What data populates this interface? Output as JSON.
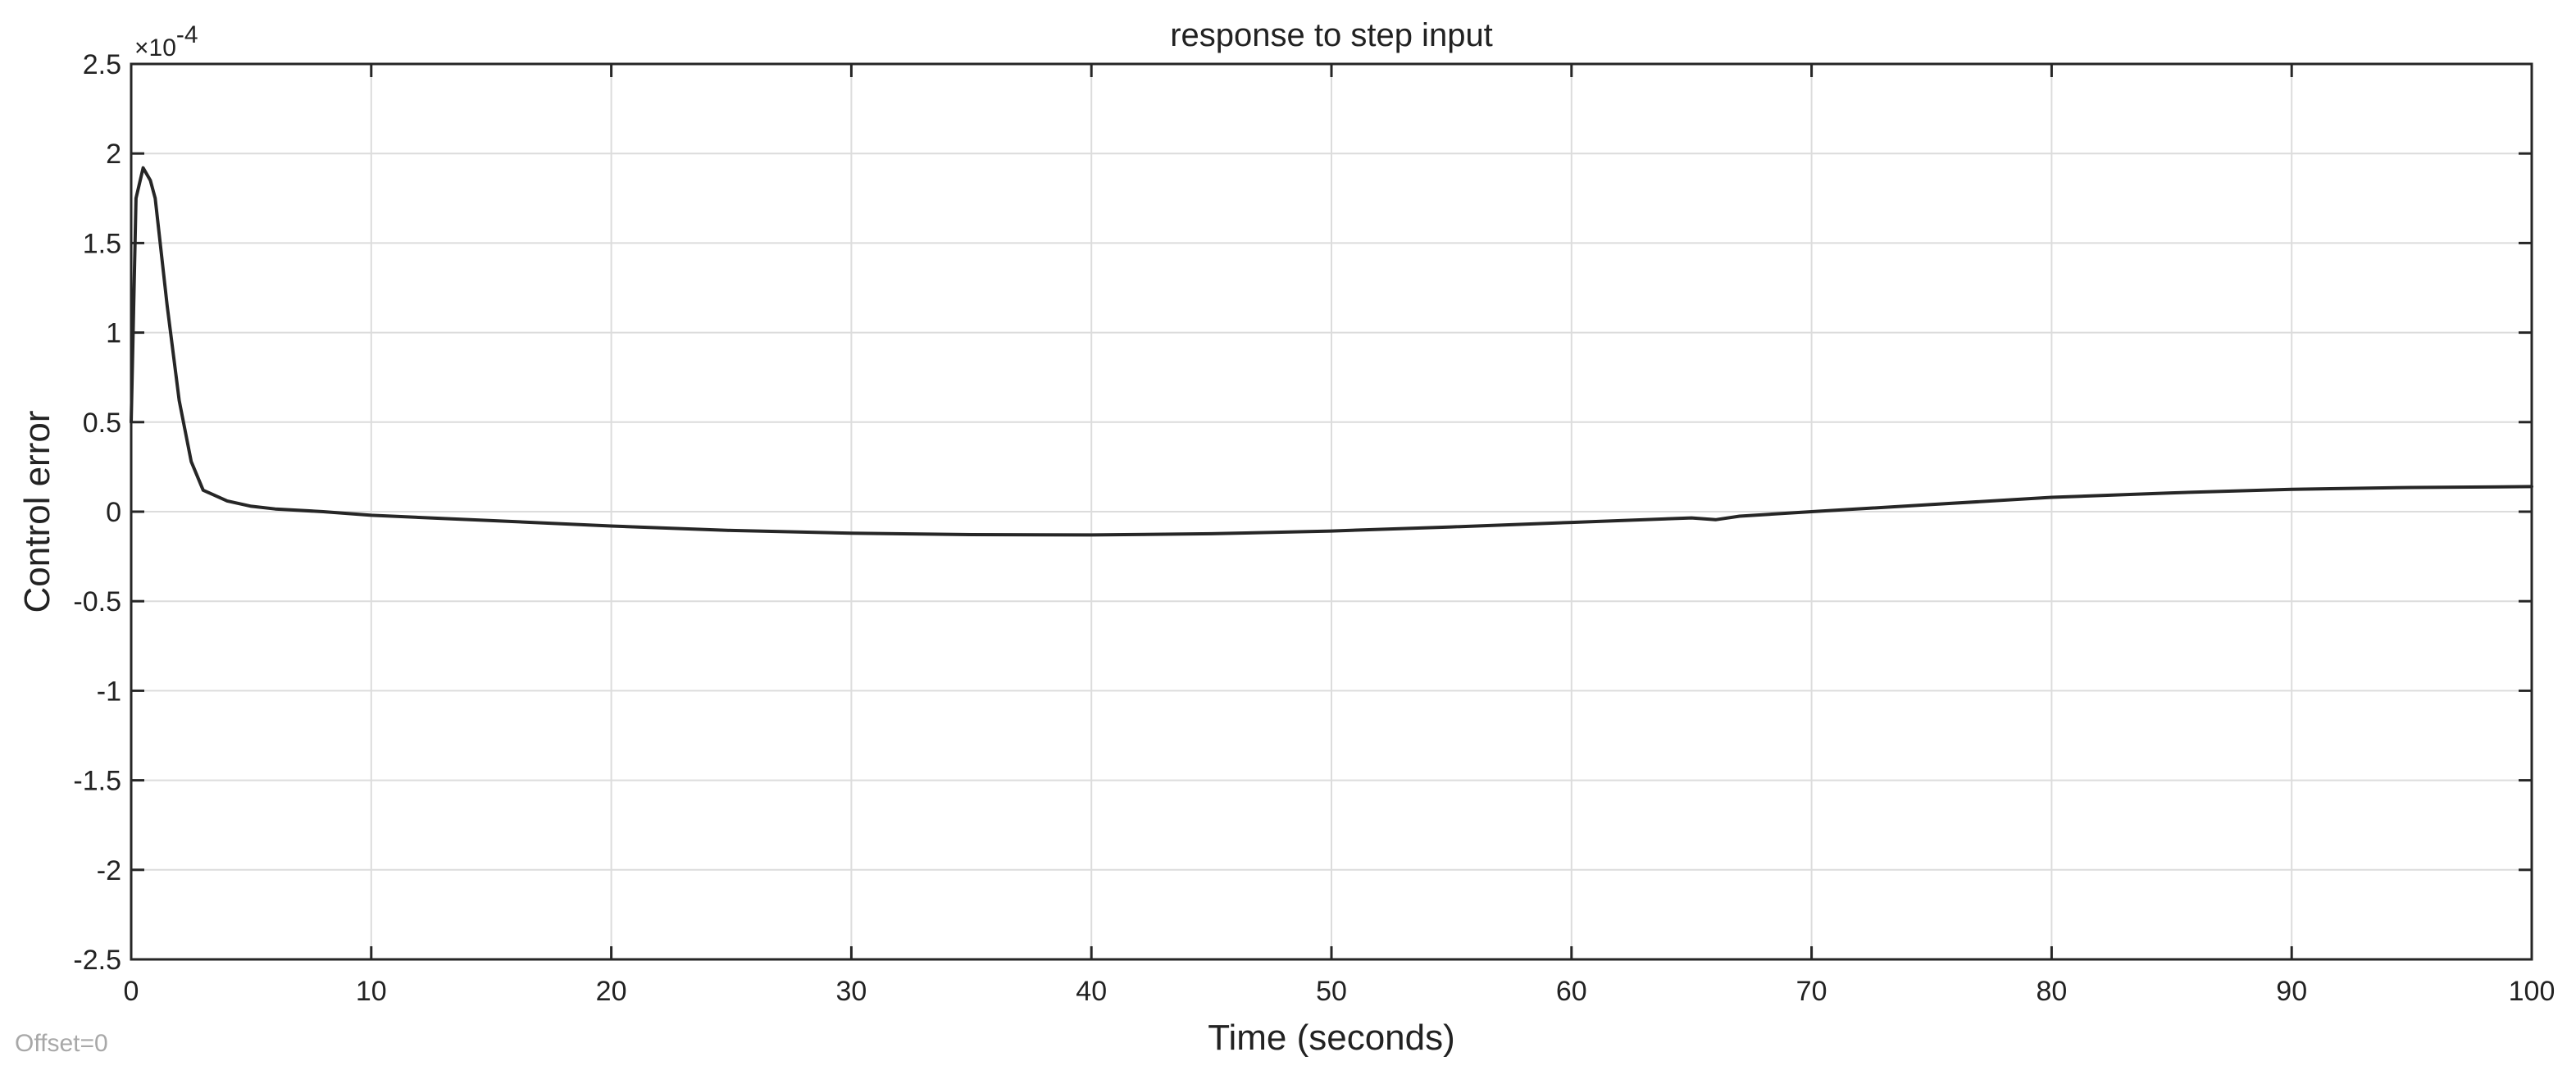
{
  "chart_data": {
    "type": "line",
    "title": "response to step input",
    "xlabel": "Time (seconds)",
    "ylabel": "Control error",
    "y_exponent_base": "×10",
    "y_exponent_power": "-4",
    "offset_label": "Offset=0",
    "xlim": [
      0,
      100
    ],
    "ylim": [
      -2.5,
      2.5
    ],
    "x_ticks": [
      0,
      10,
      20,
      30,
      40,
      50,
      60,
      70,
      80,
      90,
      100
    ],
    "x_tick_labels": [
      "0",
      "10",
      "20",
      "30",
      "40",
      "50",
      "60",
      "70",
      "80",
      "90",
      "100"
    ],
    "y_ticks": [
      -2.5,
      -2,
      -1.5,
      -1,
      -0.5,
      0,
      0.5,
      1,
      1.5,
      2,
      2.5
    ],
    "y_tick_labels": [
      "-2.5",
      "-2",
      "-1.5",
      "-1",
      "-0.5",
      "0",
      "0.5",
      "1",
      "1.5",
      "2",
      "2.5"
    ],
    "grid": true,
    "series_color": "#262626",
    "series": [
      {
        "x": [
          0,
          0.2,
          0.5,
          0.8,
          1.0,
          1.5,
          2.0,
          2.5,
          3.0,
          4.0,
          5.0,
          6.0,
          8.0,
          10.0,
          15.0,
          20.0,
          25.0,
          30.0,
          35.0,
          40.0,
          45.0,
          50.0,
          55.0,
          60.0,
          65.0,
          66.0,
          67.0,
          70.0,
          75.0,
          80.0,
          85.0,
          90.0,
          95.0,
          100.0
        ],
        "y": [
          0.5,
          1.75,
          1.92,
          1.85,
          1.75,
          1.15,
          0.62,
          0.28,
          0.12,
          0.06,
          0.03,
          0.015,
          0.0,
          -0.02,
          -0.05,
          -0.08,
          -0.105,
          -0.12,
          -0.128,
          -0.13,
          -0.123,
          -0.108,
          -0.085,
          -0.06,
          -0.035,
          -0.045,
          -0.025,
          0.0,
          0.04,
          0.08,
          0.105,
          0.125,
          0.135,
          0.14
        ]
      }
    ]
  }
}
